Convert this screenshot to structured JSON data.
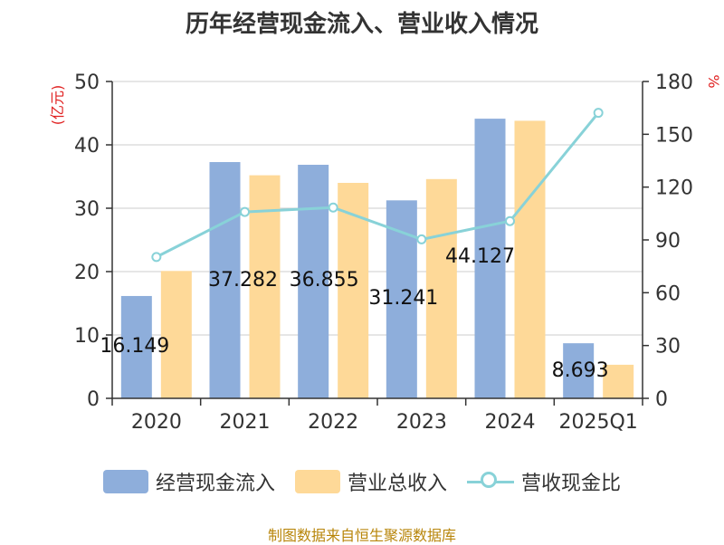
{
  "chart_data": {
    "type": "bar",
    "title": "历年经营现金流入、营业收入情况",
    "categories": [
      "2020",
      "2021",
      "2022",
      "2023",
      "2024",
      "2025Q1"
    ],
    "left_axis": {
      "unit_label": "(亿元)",
      "ylim": [
        0,
        50
      ],
      "ticks": [
        0,
        10,
        20,
        30,
        40,
        50
      ]
    },
    "right_axis": {
      "unit_label": "%",
      "ylim": [
        0,
        180
      ],
      "ticks": [
        0,
        30,
        60,
        90,
        120,
        150,
        180
      ]
    },
    "series": [
      {
        "name": "经营现金流入",
        "kind": "bar",
        "axis": "left",
        "color": "#8eaedb",
        "values": [
          16.149,
          37.282,
          36.855,
          31.241,
          44.127,
          8.693
        ],
        "data_labels": [
          "16.149",
          "37.282",
          "36.855",
          "31.241",
          "44.127",
          "8.693"
        ]
      },
      {
        "name": "营业总收入",
        "kind": "bar",
        "axis": "left",
        "color": "#fed998",
        "values": [
          20.1,
          35.2,
          34.0,
          34.6,
          43.8,
          5.3
        ]
      },
      {
        "name": "营收现金比",
        "kind": "line",
        "axis": "right",
        "color": "#88d2d8",
        "values": [
          80.3,
          105.9,
          108.4,
          90.3,
          100.7,
          162.2
        ]
      }
    ],
    "grid": true,
    "legend_position": "bottom"
  },
  "source_text": "制图数据来自恒生聚源数据库",
  "colors": {
    "left_unit": "#e02020",
    "right_unit": "#e02020",
    "axis": "#333333",
    "grid": "#cccccc"
  }
}
